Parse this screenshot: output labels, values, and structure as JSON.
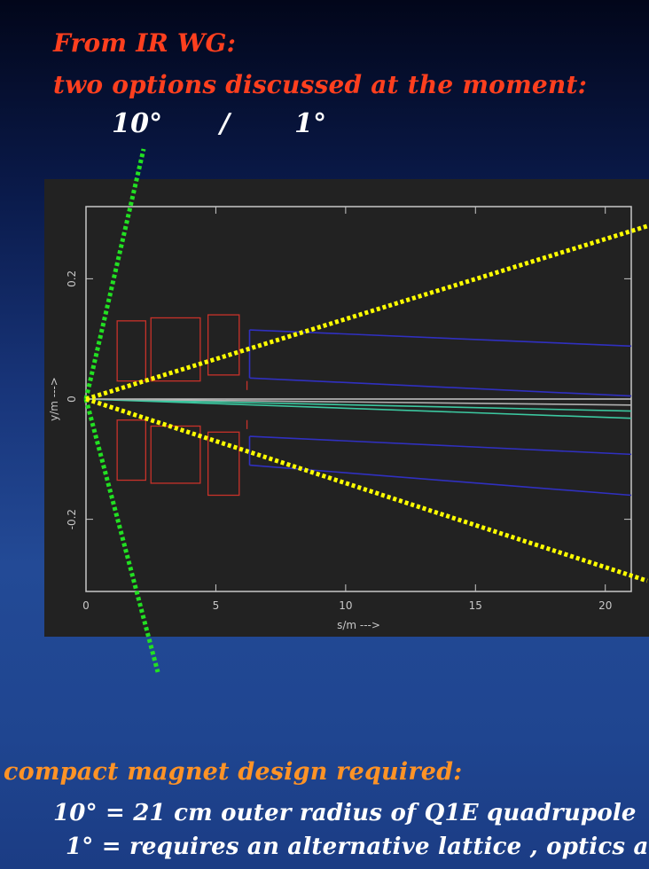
{
  "slide": {
    "header_line1": "From IR WG:",
    "header_line2": "two options discussed at the moment:",
    "angle_left": "10°",
    "angle_separator": "/",
    "angle_right": "1°",
    "bullet_heading": "compact magnet design required:",
    "bullet_1": "10° = 21 cm outer radius of Q1E quadrupole",
    "bullet_2": "1° = requires an alternative lattice , optics a",
    "colors": {
      "header": "#ff3f1e",
      "heading_orange": "#ff9326",
      "body_text": "#ffffff",
      "cone_10deg": "#22e022",
      "cone_1deg": "#ffff00"
    }
  },
  "chart_data": {
    "type": "line",
    "title": "",
    "xlabel": "s/m --->",
    "ylabel": "y/m --->",
    "xlim": [
      0,
      21
    ],
    "ylim": [
      -0.32,
      0.32
    ],
    "xticks": [
      0,
      5,
      10,
      15,
      20
    ],
    "yticks": [
      -0.2,
      0,
      0.2
    ],
    "grid": false,
    "magnets": [
      {
        "name": "Q1 upper",
        "x": [
          1.2,
          2.3
        ],
        "y": [
          0.03,
          0.13
        ]
      },
      {
        "name": "Q2 upper",
        "x": [
          2.5,
          4.4
        ],
        "y": [
          0.03,
          0.135
        ]
      },
      {
        "name": "Q3 upper",
        "x": [
          4.7,
          5.9
        ],
        "y": [
          0.04,
          0.14
        ]
      },
      {
        "name": "Q1 lower",
        "x": [
          1.2,
          2.3
        ],
        "y": [
          -0.135,
          -0.035
        ]
      },
      {
        "name": "Q2 lower",
        "x": [
          2.5,
          4.4
        ],
        "y": [
          -0.14,
          -0.045
        ]
      },
      {
        "name": "Q3 lower",
        "x": [
          4.7,
          5.9
        ],
        "y": [
          -0.16,
          -0.055
        ]
      }
    ],
    "series": [
      {
        "x": [
          6.3,
          21
        ],
        "y": [
          0.115,
          0.088
        ],
        "color": "#3030c0"
      },
      {
        "x": [
          6.3,
          21
        ],
        "y": [
          0.035,
          0.005
        ],
        "color": "#3030c0"
      },
      {
        "x": [
          6.3,
          21
        ],
        "y": [
          -0.062,
          -0.092
        ],
        "color": "#3030c0"
      },
      {
        "x": [
          6.3,
          21
        ],
        "y": [
          -0.11,
          -0.16
        ],
        "color": "#3030c0"
      },
      {
        "x": [
          0,
          21
        ],
        "y": [
          0,
          0
        ],
        "color": "#c8c8c8"
      },
      {
        "x": [
          0,
          21
        ],
        "y": [
          0,
          -0.02
        ],
        "color": "#3cc8a0"
      },
      {
        "x": [
          0,
          21
        ],
        "y": [
          0,
          -0.032
        ],
        "color": "#3cc8a0"
      },
      {
        "x": [
          0,
          21
        ],
        "y": [
          0,
          -0.01
        ],
        "color": "#b0b0b0"
      }
    ],
    "cones": {
      "ten_degree": {
        "label": "10°",
        "color": "#22e022"
      },
      "one_degree": {
        "label": "1°",
        "color": "#ffff00"
      }
    }
  }
}
